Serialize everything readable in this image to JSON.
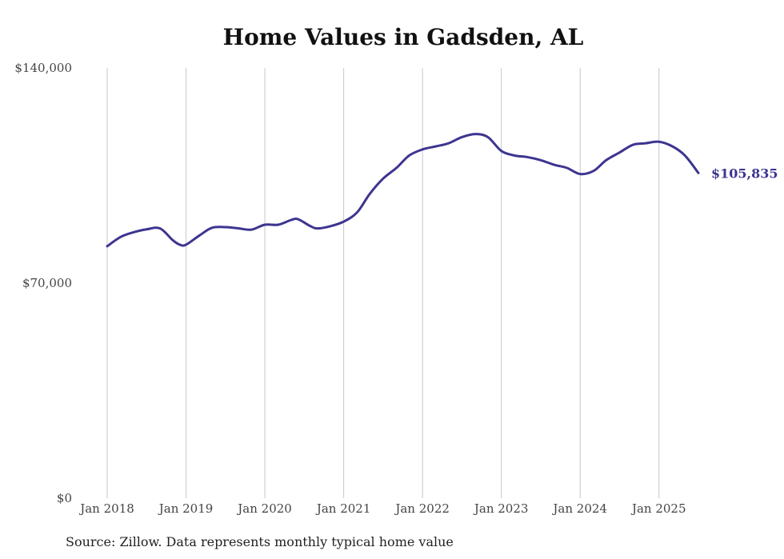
{
  "chart_data": {
    "type": "line",
    "title": "Home Values in Gadsden, AL",
    "xlabel": "",
    "ylabel": "",
    "ylim": [
      0,
      140000
    ],
    "yticks": [
      {
        "value": 0,
        "label": "$0"
      },
      {
        "value": 70000,
        "label": "$70,000"
      },
      {
        "value": 140000,
        "label": "$140,000"
      }
    ],
    "xticks": [
      {
        "value": 2018,
        "label": "Jan 2018"
      },
      {
        "value": 2019,
        "label": "Jan 2019"
      },
      {
        "value": 2020,
        "label": "Jan 2020"
      },
      {
        "value": 2021,
        "label": "Jan 2021"
      },
      {
        "value": 2022,
        "label": "Jan 2022"
      },
      {
        "value": 2023,
        "label": "Jan 2023"
      },
      {
        "value": 2024,
        "label": "Jan 2024"
      },
      {
        "value": 2025,
        "label": "Jan 2025"
      }
    ],
    "xlim": [
      2018,
      2025.5
    ],
    "grid": "vertical",
    "series": [
      {
        "color": "#3d3590",
        "end_label": "$105,835",
        "points": [
          [
            2018.0,
            82000
          ],
          [
            2018.17,
            85000
          ],
          [
            2018.33,
            86500
          ],
          [
            2018.5,
            87500
          ],
          [
            2018.67,
            87800
          ],
          [
            2018.83,
            84000
          ],
          [
            2018.92,
            82500
          ],
          [
            2019.0,
            82500
          ],
          [
            2019.17,
            85500
          ],
          [
            2019.33,
            88000
          ],
          [
            2019.5,
            88200
          ],
          [
            2019.67,
            87800
          ],
          [
            2019.83,
            87400
          ],
          [
            2020.0,
            89000
          ],
          [
            2020.17,
            89000
          ],
          [
            2020.33,
            90500
          ],
          [
            2020.42,
            90800
          ],
          [
            2020.58,
            88500
          ],
          [
            2020.67,
            87800
          ],
          [
            2020.83,
            88500
          ],
          [
            2021.0,
            90000
          ],
          [
            2021.17,
            93000
          ],
          [
            2021.33,
            99000
          ],
          [
            2021.5,
            104000
          ],
          [
            2021.67,
            107500
          ],
          [
            2021.83,
            111500
          ],
          [
            2022.0,
            113500
          ],
          [
            2022.17,
            114500
          ],
          [
            2022.33,
            115500
          ],
          [
            2022.5,
            117500
          ],
          [
            2022.67,
            118500
          ],
          [
            2022.83,
            117500
          ],
          [
            2023.0,
            113000
          ],
          [
            2023.17,
            111500
          ],
          [
            2023.33,
            111000
          ],
          [
            2023.5,
            110000
          ],
          [
            2023.67,
            108500
          ],
          [
            2023.83,
            107500
          ],
          [
            2024.0,
            105500
          ],
          [
            2024.17,
            106500
          ],
          [
            2024.33,
            110000
          ],
          [
            2024.5,
            112500
          ],
          [
            2024.67,
            115000
          ],
          [
            2024.83,
            115500
          ],
          [
            2025.0,
            116000
          ],
          [
            2025.17,
            114500
          ],
          [
            2025.33,
            111500
          ],
          [
            2025.5,
            105835
          ]
        ]
      }
    ],
    "source": "Source: Zillow. Data represents monthly typical home value"
  }
}
